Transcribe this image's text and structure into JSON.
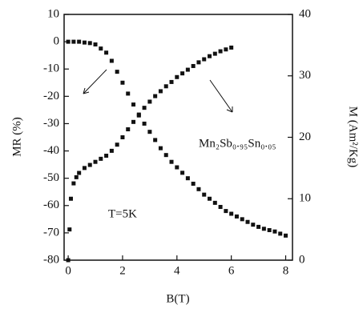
{
  "chart_data": {
    "type": "scatter",
    "xlabel": "B(T)",
    "ylabel": "MR (%)",
    "y2label": "M (Am²/Kg)",
    "annotations": [
      "Mn₂Sb₀.₉₅Sn₀.₀₅",
      "T=5K"
    ],
    "xlim": [
      -0.15,
      8.25
    ],
    "xticks": [
      0,
      2,
      4,
      6,
      8
    ],
    "ylim": [
      -80,
      10
    ],
    "yticks": [
      -80,
      -70,
      -60,
      -50,
      -40,
      -30,
      -20,
      -10,
      0,
      10
    ],
    "y2lim": [
      0,
      40
    ],
    "y2ticks": [
      0,
      10,
      20,
      30,
      40
    ],
    "series": [
      {
        "color": "#111111",
        "x": [
          0,
          0.2,
          0.4,
          0.6,
          0.8,
          1.0,
          1.2,
          1.4,
          1.6,
          1.8,
          2.0,
          2.2,
          2.4,
          2.6,
          2.8,
          3.0,
          3.2,
          3.4,
          3.6,
          3.8,
          4.0,
          4.2,
          4.4,
          4.6,
          4.8,
          5.0,
          5.2,
          5.4,
          5.6,
          5.8,
          6.0,
          6.2,
          6.4,
          6.6,
          6.8,
          7.0,
          7.2,
          7.4,
          7.6,
          7.8,
          8.0
        ],
        "values": [
          0,
          0,
          0,
          -0.3,
          -0.5,
          -1,
          -2.5,
          -4,
          -7,
          -11,
          -15,
          -19,
          -23,
          -27,
          -30,
          -33,
          -36,
          -39,
          -41.5,
          -44,
          -46,
          -48,
          -50,
          -52,
          -54,
          -56,
          -57.5,
          -59,
          -60.5,
          -62,
          -63,
          -64,
          -65,
          -66,
          -67,
          -67.8,
          -68.5,
          -69,
          -69.5,
          -70.3,
          -71
        ]
      },
      {
        "color": "#111111",
        "axis": "y2",
        "x": [
          0,
          0.05,
          0.1,
          0.2,
          0.3,
          0.4,
          0.6,
          0.8,
          1.0,
          1.2,
          1.4,
          1.6,
          1.8,
          2.0,
          2.2,
          2.4,
          2.6,
          2.8,
          3.0,
          3.2,
          3.4,
          3.6,
          3.8,
          4.0,
          4.2,
          4.4,
          4.6,
          4.8,
          5.0,
          5.2,
          5.4,
          5.6,
          5.8,
          6.0
        ],
        "values": [
          0,
          5,
          10,
          12.5,
          13.5,
          14.2,
          15,
          15.5,
          16,
          16.5,
          17,
          17.8,
          18.8,
          20,
          21.3,
          22.5,
          23.7,
          24.8,
          25.8,
          26.7,
          27.5,
          28.3,
          29,
          29.8,
          30.4,
          31,
          31.6,
          32.2,
          32.7,
          33.2,
          33.6,
          34,
          34.3,
          34.6
        ]
      }
    ]
  }
}
